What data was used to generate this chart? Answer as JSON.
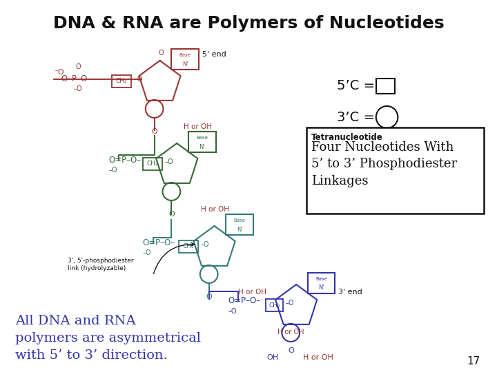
{
  "title": "DNA & RNA are Polymers of Nucleotides",
  "title_fontsize": 18,
  "title_color": "#111111",
  "bg_color": "#ffffff",
  "black_color": "#111111",
  "red_color": "#993333",
  "green_color": "#336633",
  "teal_color": "#337777",
  "blue_color": "#3333aa",
  "hooh_color": "#993333",
  "legend_5c_label": "5’C = ",
  "legend_3c_label": "3’C = ",
  "box_label_title": "Tetranucleotide",
  "box_label_body": "Four Nucleotides With\n5’ to 3’ Phosphodiester\nLinkages",
  "bottom_text": "All DNA and RNA\npolymers are asymmetrical\nwith 5’ to 3’ direction.",
  "page_number": "17"
}
